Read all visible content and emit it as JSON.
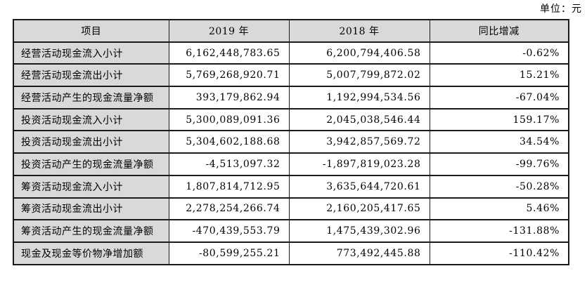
{
  "unit_label": "单位：元",
  "colors": {
    "header_bg": "#d9d9d9",
    "border": "#1a1a1a",
    "text": "#000000",
    "cell_bg": "#ffffff"
  },
  "table": {
    "headers": [
      "项目",
      "2019 年",
      "2018 年",
      "同比增减"
    ],
    "rows": [
      {
        "item": "经营活动现金流入小计",
        "y2019": "6,162,448,783.65",
        "y2018": "6,200,794,406.58",
        "yoy": "-0.62%"
      },
      {
        "item": "经营活动现金流出小计",
        "y2019": "5,769,268,920.71",
        "y2018": "5,007,799,872.02",
        "yoy": "15.21%"
      },
      {
        "item": "经营活动产生的现金流量净额",
        "y2019": "393,179,862.94",
        "y2018": "1,192,994,534.56",
        "yoy": "-67.04%"
      },
      {
        "item": "投资活动现金流入小计",
        "y2019": "5,300,089,091.36",
        "y2018": "2,045,038,546.44",
        "yoy": "159.17%"
      },
      {
        "item": "投资活动现金流出小计",
        "y2019": "5,304,602,188.68",
        "y2018": "3,942,857,569.72",
        "yoy": "34.54%"
      },
      {
        "item": "投资活动产生的现金流量净额",
        "y2019": "-4,513,097.32",
        "y2018": "-1,897,819,023.28",
        "yoy": "-99.76%"
      },
      {
        "item": "筹资活动现金流入小计",
        "y2019": "1,807,814,712.95",
        "y2018": "3,635,644,720.61",
        "yoy": "-50.28%"
      },
      {
        "item": "筹资活动现金流出小计",
        "y2019": "2,278,254,266.74",
        "y2018": "2,160,205,417.65",
        "yoy": "5.46%"
      },
      {
        "item": "筹资活动产生的现金流量净额",
        "y2019": "-470,439,553.79",
        "y2018": "1,475,439,302.96",
        "yoy": "-131.88%"
      },
      {
        "item": "现金及现金等价物净增加额",
        "y2019": "-80,599,255.21",
        "y2018": "773,492,445.88",
        "yoy": "-110.42%"
      }
    ]
  }
}
